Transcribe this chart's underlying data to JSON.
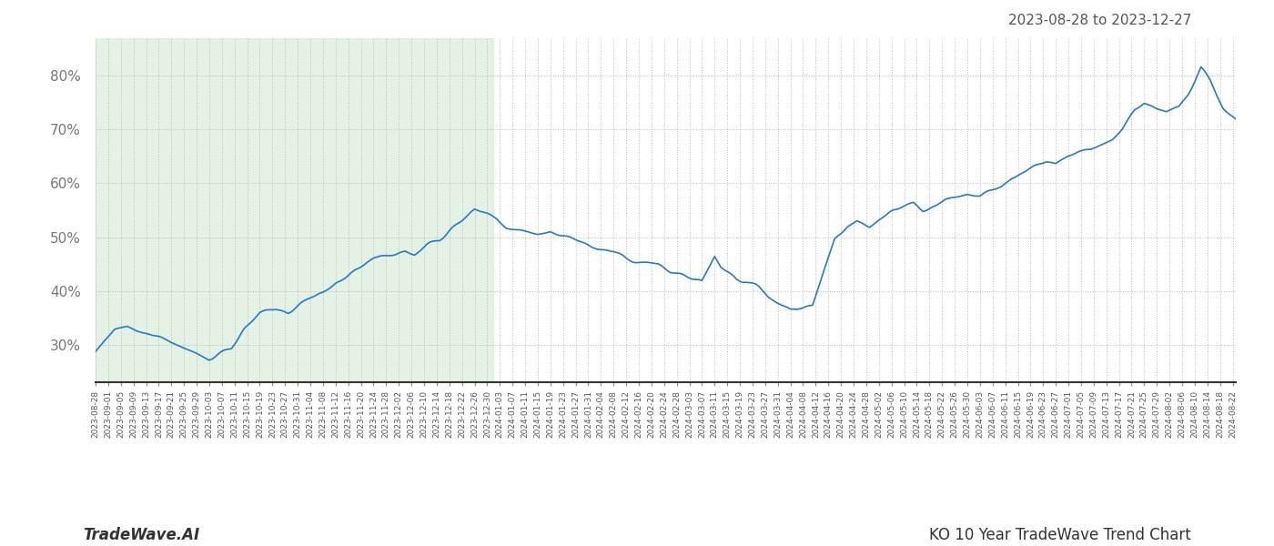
{
  "title_right": "2023-08-28 to 2023-12-27",
  "footer_left": "TradeWave.AI",
  "footer_right": "KO 10 Year TradeWave Trend Chart",
  "shade_start": "2023-08-28",
  "shade_end": "2024-01-01",
  "shade_color": "#cce8d0",
  "shade_alpha": 0.55,
  "line_color": "#2878c8",
  "line_width": 1.2,
  "bg_color": "#ffffff",
  "grid_color": "#bbbbbb",
  "grid_style": ":",
  "yticks": [
    30,
    40,
    50,
    60,
    70,
    80
  ],
  "ylim": [
    23,
    87
  ],
  "date_start": "2023-08-28",
  "date_end": "2024-08-23",
  "seed": 42,
  "base_data": [
    [
      "2023-08-28",
      28.5
    ],
    [
      "2023-09-03",
      32.5
    ],
    [
      "2023-09-07",
      33.5
    ],
    [
      "2023-09-11",
      33.0
    ],
    [
      "2023-09-15",
      32.0
    ],
    [
      "2023-09-20",
      31.0
    ],
    [
      "2023-09-25",
      29.5
    ],
    [
      "2023-09-28",
      28.5
    ],
    [
      "2023-10-03",
      27.5
    ],
    [
      "2023-10-06",
      28.5
    ],
    [
      "2023-10-10",
      29.5
    ],
    [
      "2023-10-14",
      33.0
    ],
    [
      "2023-10-19",
      36.0
    ],
    [
      "2023-10-24",
      36.5
    ],
    [
      "2023-10-28",
      36.0
    ],
    [
      "2023-11-01",
      37.5
    ],
    [
      "2023-11-04",
      38.5
    ],
    [
      "2023-11-08",
      39.5
    ],
    [
      "2023-11-12",
      41.5
    ],
    [
      "2023-11-16",
      43.0
    ],
    [
      "2023-11-20",
      44.5
    ],
    [
      "2023-11-24",
      46.0
    ],
    [
      "2023-11-27",
      46.5
    ],
    [
      "2023-12-01",
      47.0
    ],
    [
      "2023-12-04",
      47.5
    ],
    [
      "2023-12-07",
      47.0
    ],
    [
      "2023-12-11",
      48.5
    ],
    [
      "2023-12-15",
      49.5
    ],
    [
      "2023-12-19",
      51.5
    ],
    [
      "2023-12-22",
      53.0
    ],
    [
      "2023-12-26",
      55.0
    ],
    [
      "2023-12-29",
      54.5
    ],
    [
      "2024-01-02",
      53.5
    ],
    [
      "2024-01-05",
      52.0
    ],
    [
      "2024-01-08",
      51.5
    ],
    [
      "2024-01-12",
      51.0
    ],
    [
      "2024-01-15",
      50.5
    ],
    [
      "2024-01-19",
      51.0
    ],
    [
      "2024-01-22",
      50.5
    ],
    [
      "2024-01-25",
      50.0
    ],
    [
      "2024-01-29",
      49.0
    ],
    [
      "2024-02-01",
      48.0
    ],
    [
      "2024-02-05",
      47.5
    ],
    [
      "2024-02-08",
      47.0
    ],
    [
      "2024-02-12",
      46.0
    ],
    [
      "2024-02-15",
      45.5
    ],
    [
      "2024-02-19",
      45.0
    ],
    [
      "2024-02-22",
      44.5
    ],
    [
      "2024-02-26",
      43.5
    ],
    [
      "2024-03-01",
      43.0
    ],
    [
      "2024-03-04",
      42.5
    ],
    [
      "2024-03-07",
      42.0
    ],
    [
      "2024-03-11",
      46.5
    ],
    [
      "2024-03-13",
      44.5
    ],
    [
      "2024-03-15",
      43.5
    ],
    [
      "2024-03-18",
      42.0
    ],
    [
      "2024-03-21",
      41.5
    ],
    [
      "2024-03-25",
      40.0
    ],
    [
      "2024-03-28",
      38.5
    ],
    [
      "2024-04-01",
      37.5
    ],
    [
      "2024-04-04",
      36.5
    ],
    [
      "2024-04-08",
      37.0
    ],
    [
      "2024-04-11",
      37.5
    ],
    [
      "2024-04-15",
      44.5
    ],
    [
      "2024-04-18",
      49.5
    ],
    [
      "2024-04-22",
      52.0
    ],
    [
      "2024-04-25",
      53.0
    ],
    [
      "2024-04-29",
      52.0
    ],
    [
      "2024-05-02",
      53.0
    ],
    [
      "2024-05-06",
      54.5
    ],
    [
      "2024-05-09",
      55.5
    ],
    [
      "2024-05-13",
      56.5
    ],
    [
      "2024-05-16",
      55.5
    ],
    [
      "2024-05-20",
      56.0
    ],
    [
      "2024-05-23",
      57.0
    ],
    [
      "2024-05-27",
      57.5
    ],
    [
      "2024-05-30",
      58.0
    ],
    [
      "2024-06-03",
      57.5
    ],
    [
      "2024-06-06",
      58.5
    ],
    [
      "2024-06-10",
      59.5
    ],
    [
      "2024-06-13",
      61.0
    ],
    [
      "2024-06-17",
      62.0
    ],
    [
      "2024-06-20",
      63.0
    ],
    [
      "2024-06-24",
      64.0
    ],
    [
      "2024-06-27",
      63.5
    ],
    [
      "2024-07-01",
      65.0
    ],
    [
      "2024-07-04",
      65.5
    ],
    [
      "2024-07-08",
      66.0
    ],
    [
      "2024-07-11",
      67.0
    ],
    [
      "2024-07-15",
      68.0
    ],
    [
      "2024-07-18",
      70.0
    ],
    [
      "2024-07-22",
      73.5
    ],
    [
      "2024-07-25",
      75.0
    ],
    [
      "2024-07-29",
      74.0
    ],
    [
      "2024-08-01",
      73.5
    ],
    [
      "2024-08-05",
      74.5
    ],
    [
      "2024-08-08",
      77.0
    ],
    [
      "2024-08-12",
      81.5
    ],
    [
      "2024-08-15",
      79.0
    ],
    [
      "2024-08-19",
      74.0
    ],
    [
      "2024-08-23",
      71.5
    ]
  ]
}
